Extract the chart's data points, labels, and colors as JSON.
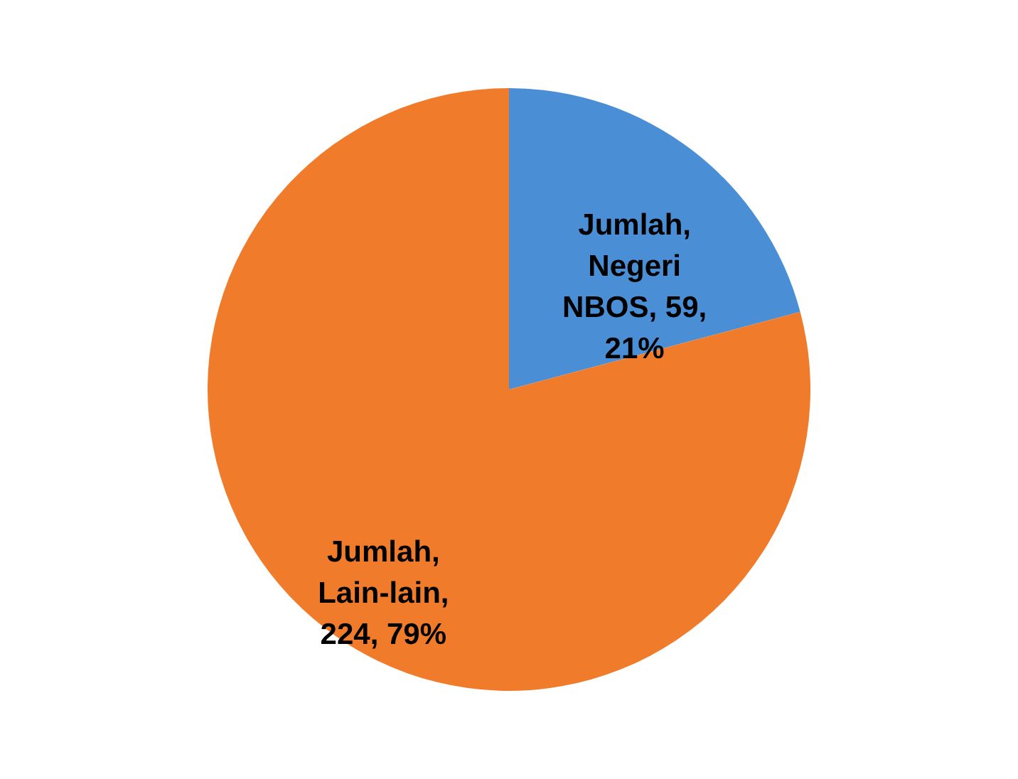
{
  "chart_data": {
    "type": "pie",
    "categories": [
      "Jumlah, Negeri NBOS, 59, 21%",
      "Jumlah, Lain-lain, 224, 79%"
    ],
    "values": [
      59,
      224
    ],
    "colors": [
      "#4a8fd6",
      "#f07b2a"
    ],
    "legend": false
  }
}
